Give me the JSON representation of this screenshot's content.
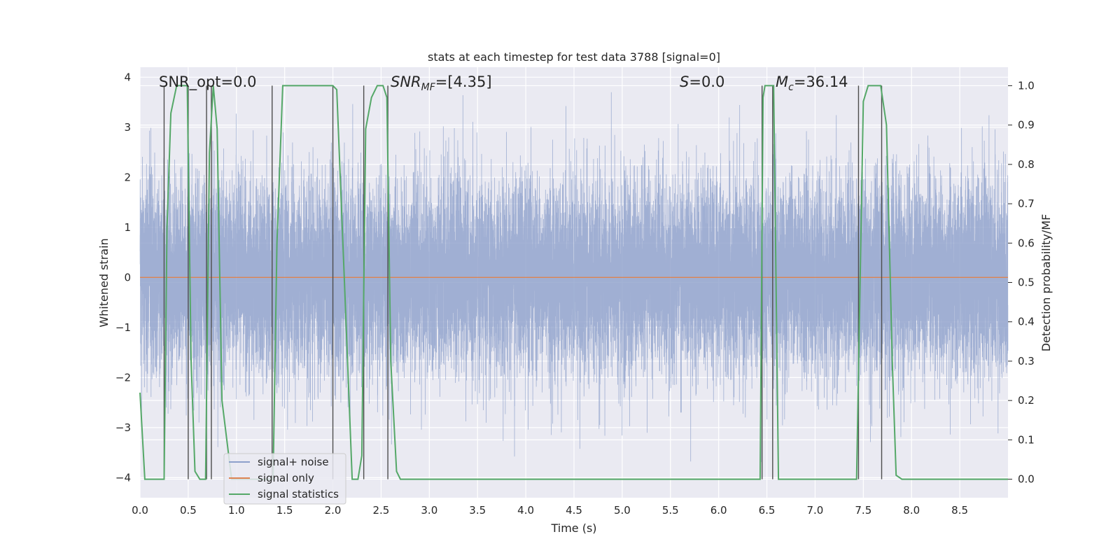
{
  "chart_data": {
    "type": "line",
    "title": "stats at each timestep for test data 3788 [signal=0]",
    "xlabel": "Time (s)",
    "ylabel": "Whitened strain",
    "ylabel_right": "Detection probability/MF",
    "xlim": [
      0.0,
      9.0
    ],
    "ylim": [
      -4.4,
      4.2
    ],
    "ylim_right": [
      -0.047,
      1.047
    ],
    "x_ticks": [
      "0.0",
      "0.5",
      "1.0",
      "1.5",
      "2.0",
      "2.5",
      "3.0",
      "3.5",
      "4.0",
      "4.5",
      "5.0",
      "5.5",
      "6.0",
      "6.5",
      "7.0",
      "7.5",
      "8.0",
      "8.5"
    ],
    "y_ticks": [
      "−4",
      "−3",
      "−2",
      "−1",
      "0",
      "1",
      "2",
      "3",
      "4"
    ],
    "y_ticks_right": [
      "0.0",
      "0.1",
      "0.2",
      "0.3",
      "0.4",
      "0.5",
      "0.6",
      "0.7",
      "0.8",
      "0.9",
      "1.0"
    ],
    "grid": true,
    "legend_position": "lower-left",
    "annotations": {
      "snr_opt": "SNR_opt=0.0",
      "snr_mf_main": "SNR",
      "snr_mf_sub": "MF",
      "snr_mf_val": "=[4.35]",
      "s_main": "S",
      "s_val": "=0.0",
      "mc_main": "M",
      "mc_sub": "c",
      "mc_val": "=36.14"
    },
    "series": [
      {
        "name": "signal+ noise",
        "color": "#8da0cb",
        "kind": "noise",
        "sample_rate_hz": 2048,
        "approx_std": 1.0,
        "approx_range": [
          -3.9,
          3.7
        ]
      },
      {
        "name": "signal only",
        "color": "#dd8452",
        "x": [
          0.0,
          9.0
        ],
        "y": [
          0.0,
          0.0
        ]
      },
      {
        "name": "signal statistics",
        "color": "#55a868",
        "axis": "right",
        "x": [
          0.0,
          0.05,
          0.25,
          0.28,
          0.32,
          0.38,
          0.45,
          0.49,
          0.53,
          0.57,
          0.62,
          0.68,
          0.72,
          0.76,
          0.8,
          0.85,
          0.95,
          1.1,
          1.3,
          1.38,
          1.42,
          1.48,
          1.52,
          2.0,
          2.04,
          2.12,
          2.2,
          2.26,
          2.3,
          2.34,
          2.4,
          2.46,
          2.52,
          2.56,
          2.6,
          2.66,
          2.7,
          2.8,
          3.5,
          4.5,
          5.5,
          6.2,
          6.43,
          6.46,
          6.48,
          6.51,
          6.57,
          6.62,
          6.68,
          6.8,
          7.0,
          7.2,
          7.43,
          7.5,
          7.55,
          7.6,
          7.68,
          7.74,
          7.8,
          7.84,
          7.9,
          8.0,
          9.0
        ],
        "y": [
          0.22,
          0.0,
          0.0,
          0.64,
          0.93,
          1.0,
          1.0,
          1.0,
          0.3,
          0.02,
          0.0,
          0.0,
          0.83,
          1.0,
          0.89,
          0.2,
          0.0,
          0.0,
          0.0,
          0.0,
          0.6,
          1.0,
          1.0,
          1.0,
          0.99,
          0.5,
          0.0,
          0.0,
          0.06,
          0.89,
          0.97,
          1.0,
          1.0,
          0.97,
          0.3,
          0.02,
          0.0,
          0.0,
          0.0,
          0.0,
          0.0,
          0.0,
          0.0,
          0.97,
          1.0,
          1.0,
          1.0,
          0.0,
          0.0,
          0.0,
          0.0,
          0.0,
          0.0,
          0.96,
          1.0,
          1.0,
          1.0,
          0.9,
          0.3,
          0.01,
          0.0,
          0.0,
          0.0
        ]
      }
    ],
    "vertical_lines_x": [
      0.25,
      0.5,
      0.69,
      0.74,
      1.37,
      2.0,
      2.32,
      2.57,
      6.45,
      6.56,
      7.45,
      7.69
    ]
  }
}
